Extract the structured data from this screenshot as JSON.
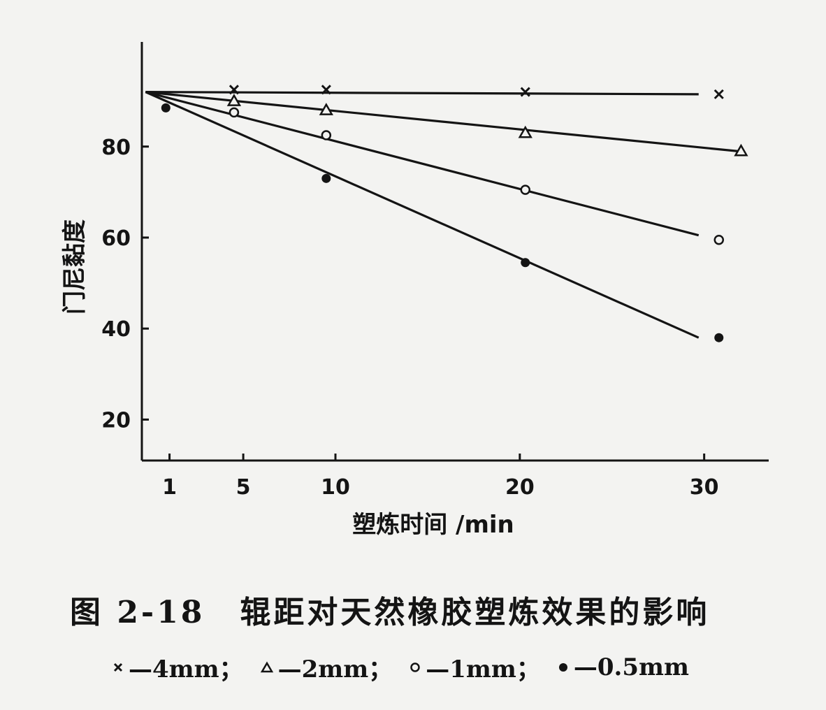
{
  "chart_data": {
    "type": "line",
    "xlabel": "塑炼时间 /min",
    "ylabel": "门尼黏度",
    "x_ticks": [
      1,
      5,
      10,
      20,
      30
    ],
    "y_ticks": [
      20,
      40,
      60,
      80
    ],
    "xlim": [
      -0.5,
      33.5
    ],
    "ylim": [
      11,
      103
    ],
    "grid": false,
    "legend_placement": "below caption",
    "series": [
      {
        "name": "4mm",
        "marker": "x",
        "points": [
          [
            4.5,
            92.5
          ],
          [
            9.5,
            92.5
          ],
          [
            20.3,
            92
          ],
          [
            30.8,
            91.5
          ]
        ],
        "fit": [
          [
            -0.3,
            92
          ],
          [
            29.7,
            91.5
          ]
        ]
      },
      {
        "name": "2mm",
        "marker": "triangle",
        "points": [
          [
            4.5,
            90
          ],
          [
            9.5,
            88
          ],
          [
            20.3,
            83
          ],
          [
            32,
            79
          ]
        ],
        "fit": [
          [
            -0.3,
            92
          ],
          [
            31.8,
            79
          ]
        ]
      },
      {
        "name": "1mm",
        "marker": "circle",
        "points": [
          [
            4.5,
            87.5
          ],
          [
            9.5,
            82.5
          ],
          [
            20.3,
            70.5
          ],
          [
            30.8,
            59.5
          ]
        ],
        "fit": [
          [
            -0.3,
            92
          ],
          [
            29.7,
            60.5
          ]
        ]
      },
      {
        "name": "0.5mm",
        "marker": "dot",
        "points": [
          [
            0.8,
            88.5
          ],
          [
            9.5,
            73
          ],
          [
            20.3,
            54.5
          ],
          [
            30.8,
            38
          ]
        ],
        "fit": [
          [
            -0.3,
            92
          ],
          [
            29.7,
            38
          ]
        ]
      }
    ]
  },
  "caption": {
    "number": "图 2-18",
    "title": "辊距对天然橡胶塑炼效果的影响"
  },
  "legend": [
    {
      "marker": "x",
      "label": "—4mm；"
    },
    {
      "marker": "triangle",
      "label": "—2mm；"
    },
    {
      "marker": "circle",
      "label": "—1mm；"
    },
    {
      "marker": "dot",
      "label": "—0.5mm"
    }
  ],
  "colors": {
    "ink": "#141414",
    "paper": "#f3f3f1"
  }
}
